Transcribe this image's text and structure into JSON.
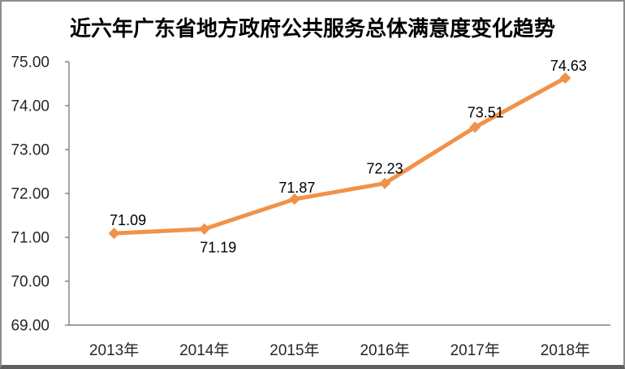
{
  "window": {
    "background": "#ffffff",
    "frame_border_color": "#8c8c8c",
    "frame_bottom_color": "#5e5e5e"
  },
  "chart_data": {
    "type": "line",
    "title": "近六年广东省地方政府公共服务总体满意度变化趋势",
    "categories": [
      "2013年",
      "2014年",
      "2015年",
      "2016年",
      "2017年",
      "2018年"
    ],
    "values": [
      71.09,
      71.19,
      71.87,
      72.23,
      73.51,
      74.63
    ],
    "data_labels": [
      "71.09",
      "71.19",
      "71.87",
      "72.23",
      "73.51",
      "74.63"
    ],
    "y_tick_labels": [
      "75.00",
      "74.00",
      "73.00",
      "72.00",
      "71.00",
      "70.00",
      "69.00"
    ],
    "ylim": [
      69.0,
      75.0
    ],
    "y_tick_step": 1.0,
    "xlabel": "",
    "ylabel": "",
    "grid": false,
    "legend": false,
    "line_color": "#F0924A",
    "marker": "diamond",
    "axis_color": "#7F7F7F",
    "axis_label_color": "#262626",
    "data_label_color": "#000000"
  }
}
